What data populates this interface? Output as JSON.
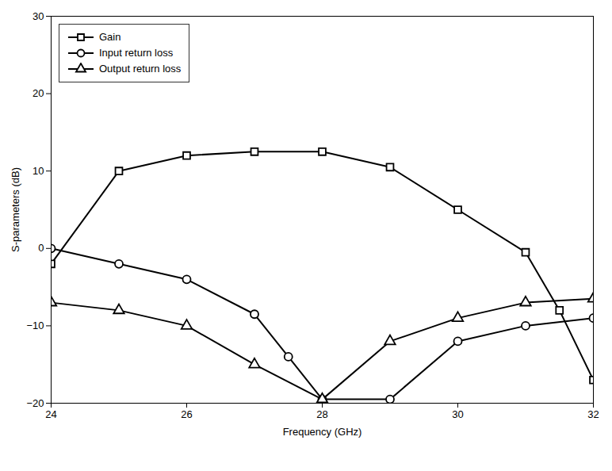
{
  "chart_data": {
    "type": "line",
    "xlabel": "Frequency (GHz)",
    "ylabel": "S-parameters (dB)",
    "series": [
      {
        "name": "Gain",
        "color": "#000000",
        "marker": "square",
        "x": [
          24,
          25,
          26,
          27,
          28,
          29,
          30,
          31,
          31.5,
          32
        ],
        "values": [
          -2,
          10,
          12,
          12.5,
          12.5,
          10.5,
          5,
          -0.5,
          -8,
          -17
        ]
      },
      {
        "name": "Input return loss",
        "color": "#000000",
        "marker": "circle",
        "x": [
          24,
          25,
          26,
          27,
          27.5,
          28,
          29,
          30,
          31,
          32
        ],
        "values": [
          0,
          -2,
          -4,
          -8.5,
          -14,
          -19.5,
          -19.5,
          -12,
          -10,
          -9
        ]
      },
      {
        "name": "Output return loss",
        "color": "#000000",
        "marker": "triangle",
        "x": [
          24,
          25,
          26,
          27,
          28,
          29,
          30,
          31,
          32
        ],
        "values": [
          -7,
          -8,
          -10,
          -15,
          -19.5,
          -12,
          -9,
          -7,
          -6.5
        ]
      }
    ],
    "xlim": [
      24,
      32
    ],
    "ylim": [
      -20,
      30
    ],
    "xticks": [
      24,
      26,
      28,
      30,
      32
    ],
    "yticks": [
      -20,
      -10,
      0,
      10,
      20,
      30
    ],
    "grid": false,
    "legend": "upper left"
  }
}
